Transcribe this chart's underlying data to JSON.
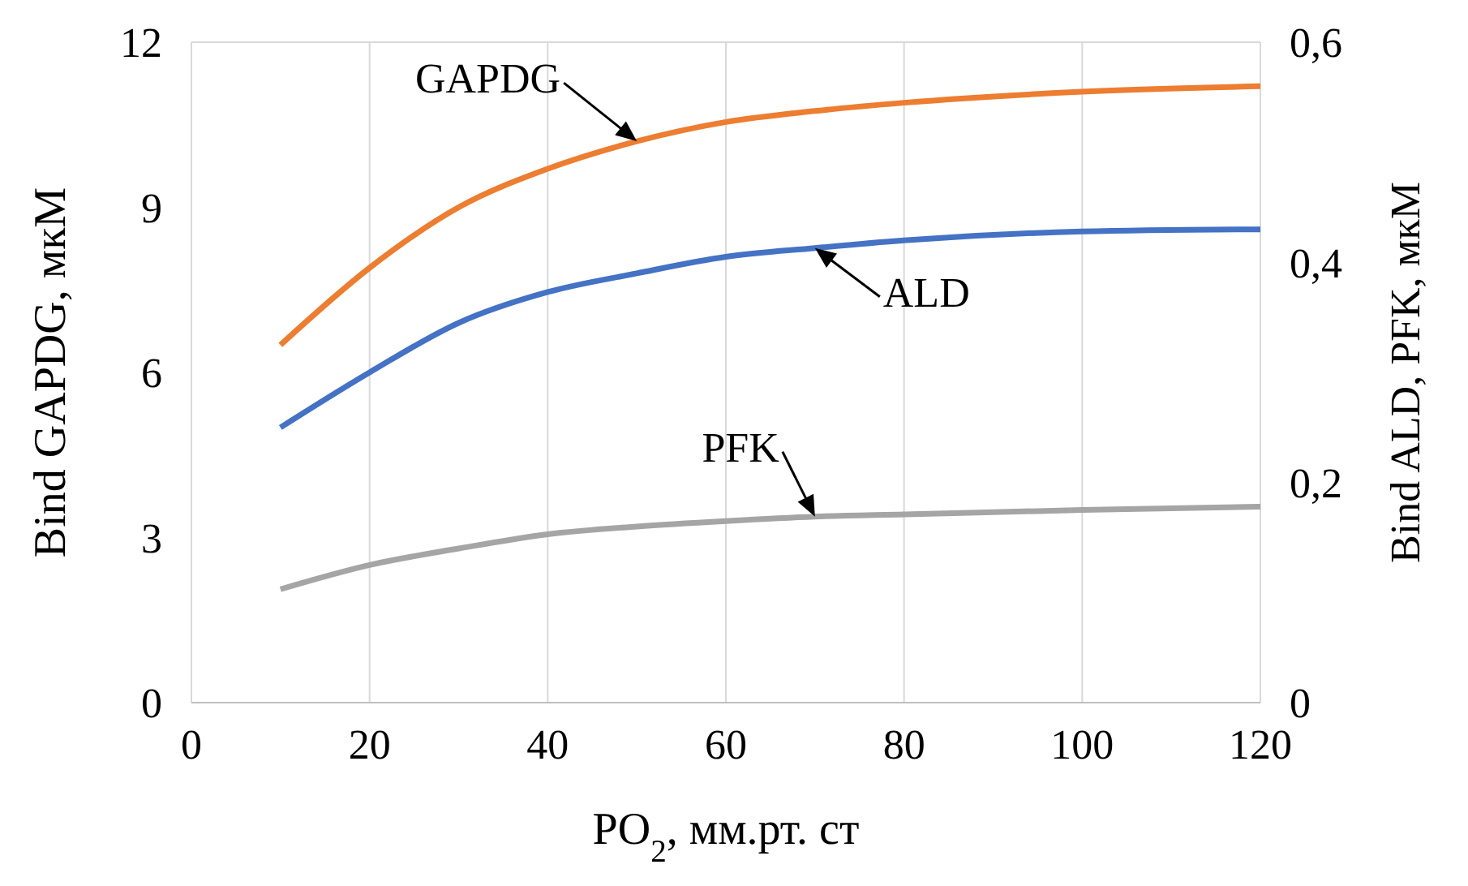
{
  "chart_data": {
    "type": "line",
    "xlabel": "PO$_{2}$, мм.рт. ст",
    "ylabel": "Bind GAPDG, мкМ",
    "y2label": "Bind ALD, PFK, мкМ",
    "x": [
      10,
      20,
      30,
      40,
      50,
      60,
      70,
      80,
      100,
      120
    ],
    "series": [
      {
        "name": "GAPDG",
        "color": "#ed7d31",
        "values": [
          6.5,
          7.9,
          9.0,
          9.7,
          10.2,
          10.55,
          10.75,
          10.9,
          11.1,
          11.2
        ]
      },
      {
        "name": "ALD",
        "color": "#4472c4",
        "axis": "y2",
        "values": [
          0.25,
          0.3,
          0.345,
          0.373,
          0.39,
          0.405,
          0.413,
          0.42,
          0.428,
          0.43
        ]
      },
      {
        "name": "PFK",
        "color": "#a5a5a5",
        "axis": "y2",
        "values": [
          0.103,
          0.125,
          0.14,
          0.153,
          0.16,
          0.165,
          0.169,
          0.171,
          0.175,
          0.178
        ]
      }
    ],
    "xlim": [
      0,
      120
    ],
    "xticks": [
      0,
      20,
      40,
      60,
      80,
      100,
      120
    ],
    "ylim": [
      0,
      12
    ],
    "yticks": [
      0,
      3,
      6,
      9,
      12
    ],
    "y2lim": [
      0,
      0.6
    ],
    "y2ticks": [
      0,
      {
        "value": 0.2,
        "label": "0,2"
      },
      {
        "value": 0.4,
        "label": "0,4"
      },
      {
        "value": 0.6,
        "label": "0,6"
      }
    ],
    "grid": true,
    "legend": false,
    "marker": "none",
    "line_style": "solid"
  }
}
